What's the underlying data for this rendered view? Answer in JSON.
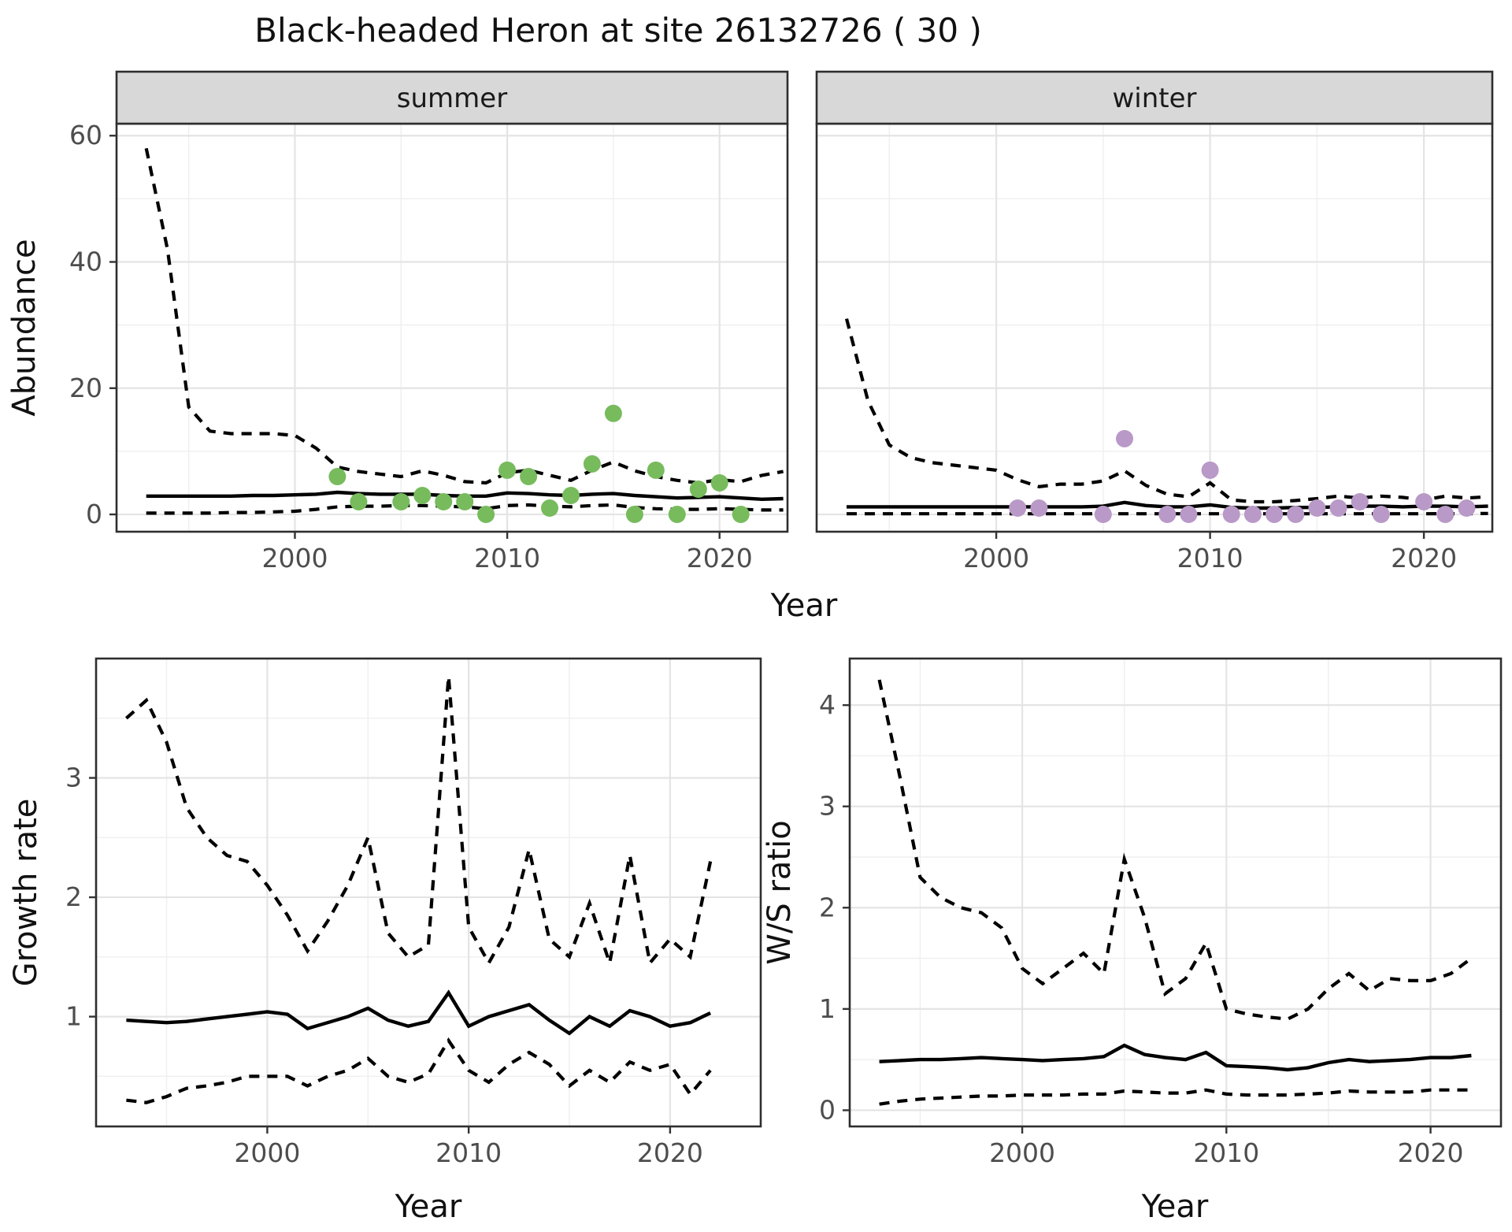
{
  "title": "Black-headed Heron at site 26132726 ( 30 )",
  "chart_data": {
    "type": "line",
    "description": "Four-panel population model figure: abundance by season with 95% CI (dashed) and median (solid) plus observed counts (points); growth rate; winter/summer ratio.",
    "abundance": {
      "ylabel": "Abundance",
      "xlabel": "Year",
      "x_ticks": [
        2000,
        2010,
        2020
      ],
      "x_minor": [
        1995,
        2005,
        2015
      ],
      "y_ticks": [
        0,
        20,
        40,
        60
      ],
      "y_minor": [
        10,
        30,
        50
      ],
      "x_domain": [
        1991.6,
        2023.2
      ],
      "y_domain": [
        -2.74,
        61.9
      ],
      "years": [
        1993,
        1994,
        1995,
        1996,
        1997,
        1998,
        1999,
        2000,
        2001,
        2002,
        2003,
        2004,
        2005,
        2006,
        2007,
        2008,
        2009,
        2010,
        2011,
        2012,
        2013,
        2014,
        2015,
        2016,
        2017,
        2018,
        2019,
        2020,
        2021,
        2022,
        2023
      ],
      "facets": [
        {
          "label": "summer",
          "point_color": "#77bb5d",
          "upper": [
            58,
            42,
            17,
            13.2,
            12.8,
            12.8,
            12.8,
            12.5,
            10.5,
            7.5,
            6.8,
            6.4,
            6.0,
            6.9,
            6.2,
            5.2,
            5.0,
            6.6,
            7.0,
            6.2,
            5.4,
            7.0,
            8.3,
            6.9,
            6.0,
            5.4,
            5.0,
            5.5,
            5.2,
            6.2,
            6.8
          ],
          "median": [
            2.9,
            2.9,
            2.9,
            2.9,
            2.9,
            3.0,
            3.0,
            3.1,
            3.2,
            3.5,
            3.3,
            3.2,
            3.2,
            3.2,
            3.0,
            2.9,
            2.9,
            3.4,
            3.3,
            3.1,
            3.0,
            3.2,
            3.3,
            3.0,
            2.8,
            2.6,
            2.7,
            2.8,
            2.6,
            2.4,
            2.5
          ],
          "lower": [
            0.2,
            0.2,
            0.2,
            0.2,
            0.3,
            0.3,
            0.4,
            0.5,
            0.8,
            1.2,
            1.3,
            1.3,
            1.4,
            1.4,
            1.3,
            1.2,
            0.9,
            1.4,
            1.5,
            1.3,
            1.2,
            1.4,
            1.5,
            1.1,
            0.9,
            0.8,
            0.8,
            0.9,
            0.8,
            0.7,
            0.7
          ],
          "points": {
            "years": [
              2002,
              2003,
              2005,
              2006,
              2007,
              2008,
              2009,
              2010,
              2011,
              2012,
              2013,
              2014,
              2015,
              2016,
              2017,
              2018,
              2019,
              2020,
              2021
            ],
            "values": [
              6,
              2,
              2,
              3,
              2,
              2,
              0,
              7,
              6,
              1,
              3,
              8,
              16,
              0,
              7,
              0,
              4,
              5,
              0
            ]
          }
        },
        {
          "label": "winter",
          "point_color": "#b999c7",
          "upper": [
            31,
            18,
            11,
            9,
            8.2,
            7.8,
            7.4,
            7.0,
            5.5,
            4.4,
            4.8,
            4.8,
            5.3,
            6.9,
            4.6,
            3.2,
            2.8,
            5.0,
            2.3,
            2.0,
            2.0,
            2.2,
            2.5,
            2.9,
            2.6,
            2.9,
            2.7,
            2.3,
            2.9,
            2.6,
            2.8
          ],
          "median": [
            1.2,
            1.2,
            1.2,
            1.2,
            1.2,
            1.2,
            1.2,
            1.2,
            1.2,
            1.2,
            1.2,
            1.2,
            1.3,
            1.9,
            1.4,
            1.2,
            1.2,
            1.5,
            1.1,
            1.0,
            1.0,
            1.1,
            1.1,
            1.2,
            1.3,
            1.3,
            1.2,
            1.3,
            1.3,
            1.2,
            1.3
          ],
          "lower": [
            0.1,
            0.1,
            0.1,
            0.1,
            0.1,
            0.1,
            0.1,
            0.1,
            0.1,
            0.1,
            0.1,
            0.1,
            0.1,
            0.1,
            0.1,
            0.1,
            0.1,
            0.1,
            0.1,
            0.1,
            0.1,
            0.1,
            0.1,
            0.1,
            0.1,
            0.1,
            0.1,
            0.1,
            0.12,
            0.12,
            0.15
          ],
          "points": {
            "years": [
              2001,
              2002,
              2005,
              2006,
              2008,
              2009,
              2010,
              2011,
              2012,
              2013,
              2014,
              2015,
              2016,
              2017,
              2018,
              2020,
              2021,
              2022
            ],
            "values": [
              1,
              1,
              0,
              12,
              0,
              0,
              7,
              0,
              0,
              0,
              0,
              1,
              1,
              2,
              0,
              2,
              0,
              1
            ]
          }
        }
      ]
    },
    "growth": {
      "ylabel": "Growth rate",
      "xlabel": "Year",
      "x_ticks": [
        2000,
        2010,
        2020
      ],
      "x_minor": [
        1995,
        2005,
        2015
      ],
      "y_ticks": [
        1,
        2,
        3
      ],
      "y_minor": [
        0.5,
        1.5,
        2.5,
        3.5
      ],
      "x_domain": [
        1991.5,
        2024.5
      ],
      "y_domain": [
        0.08,
        4.0
      ],
      "years": [
        1993,
        1994,
        1995,
        1996,
        1997,
        1998,
        1999,
        2000,
        2001,
        2002,
        2003,
        2004,
        2005,
        2006,
        2007,
        2008,
        2009,
        2010,
        2011,
        2012,
        2013,
        2014,
        2015,
        2016,
        2017,
        2018,
        2019,
        2020,
        2021,
        2022
      ],
      "upper": [
        3.5,
        3.65,
        3.3,
        2.75,
        2.5,
        2.35,
        2.3,
        2.1,
        1.85,
        1.55,
        1.8,
        2.1,
        2.5,
        1.7,
        1.5,
        1.6,
        3.85,
        1.75,
        1.45,
        1.75,
        2.4,
        1.65,
        1.5,
        1.95,
        1.45,
        2.35,
        1.45,
        1.65,
        1.5,
        2.3
      ],
      "median": [
        0.97,
        0.96,
        0.95,
        0.96,
        0.98,
        1.0,
        1.02,
        1.04,
        1.02,
        0.9,
        0.95,
        1.0,
        1.07,
        0.97,
        0.92,
        0.96,
        1.2,
        0.92,
        1.0,
        1.05,
        1.1,
        0.97,
        0.86,
        1.0,
        0.92,
        1.05,
        1.0,
        0.92,
        0.95,
        1.03
      ],
      "lower": [
        0.3,
        0.28,
        0.33,
        0.4,
        0.42,
        0.45,
        0.5,
        0.5,
        0.5,
        0.42,
        0.5,
        0.55,
        0.65,
        0.5,
        0.45,
        0.52,
        0.8,
        0.55,
        0.45,
        0.6,
        0.7,
        0.6,
        0.42,
        0.55,
        0.45,
        0.62,
        0.55,
        0.6,
        0.35,
        0.55
      ]
    },
    "ws": {
      "ylabel": "W/S ratio",
      "xlabel": "Year",
      "x_ticks": [
        2000,
        2010,
        2020
      ],
      "x_minor": [
        1995,
        2005,
        2015
      ],
      "y_ticks": [
        0,
        1,
        2,
        3,
        4
      ],
      "y_minor": [
        0.5,
        1.5,
        2.5,
        3.5
      ],
      "x_domain": [
        1991.55,
        2023.45
      ],
      "y_domain": [
        -0.16,
        4.46
      ],
      "years": [
        1993,
        1994,
        1995,
        1996,
        1997,
        1998,
        1999,
        2000,
        2001,
        2002,
        2003,
        2004,
        2005,
        2006,
        2007,
        2008,
        2009,
        2010,
        2011,
        2012,
        2013,
        2014,
        2015,
        2016,
        2017,
        2018,
        2019,
        2020,
        2021,
        2022
      ],
      "upper": [
        4.25,
        3.3,
        2.3,
        2.1,
        2.0,
        1.95,
        1.8,
        1.4,
        1.25,
        1.4,
        1.55,
        1.35,
        2.48,
        1.9,
        1.15,
        1.3,
        1.65,
        1.0,
        0.95,
        0.92,
        0.9,
        1.0,
        1.2,
        1.35,
        1.18,
        1.3,
        1.28,
        1.28,
        1.35,
        1.5
      ],
      "median": [
        0.48,
        0.49,
        0.5,
        0.5,
        0.51,
        0.52,
        0.51,
        0.5,
        0.49,
        0.5,
        0.51,
        0.53,
        0.64,
        0.55,
        0.52,
        0.5,
        0.57,
        0.44,
        0.43,
        0.42,
        0.4,
        0.42,
        0.47,
        0.5,
        0.48,
        0.49,
        0.5,
        0.52,
        0.52,
        0.54
      ],
      "lower": [
        0.06,
        0.09,
        0.11,
        0.12,
        0.13,
        0.14,
        0.14,
        0.15,
        0.15,
        0.15,
        0.16,
        0.16,
        0.19,
        0.18,
        0.17,
        0.17,
        0.2,
        0.16,
        0.15,
        0.15,
        0.15,
        0.16,
        0.17,
        0.19,
        0.18,
        0.18,
        0.18,
        0.2,
        0.2,
        0.2
      ]
    },
    "style": {
      "ci_line_color": "#000000",
      "median_line_color": "#000000",
      "strip_bg": "#d8d8d8",
      "panel_border": "#2e2e2e",
      "grid_major": "#e4e4e4",
      "grid_minor": "#efefef",
      "tick_label_color": "#4d4d4d",
      "text_color": "#111111"
    }
  }
}
